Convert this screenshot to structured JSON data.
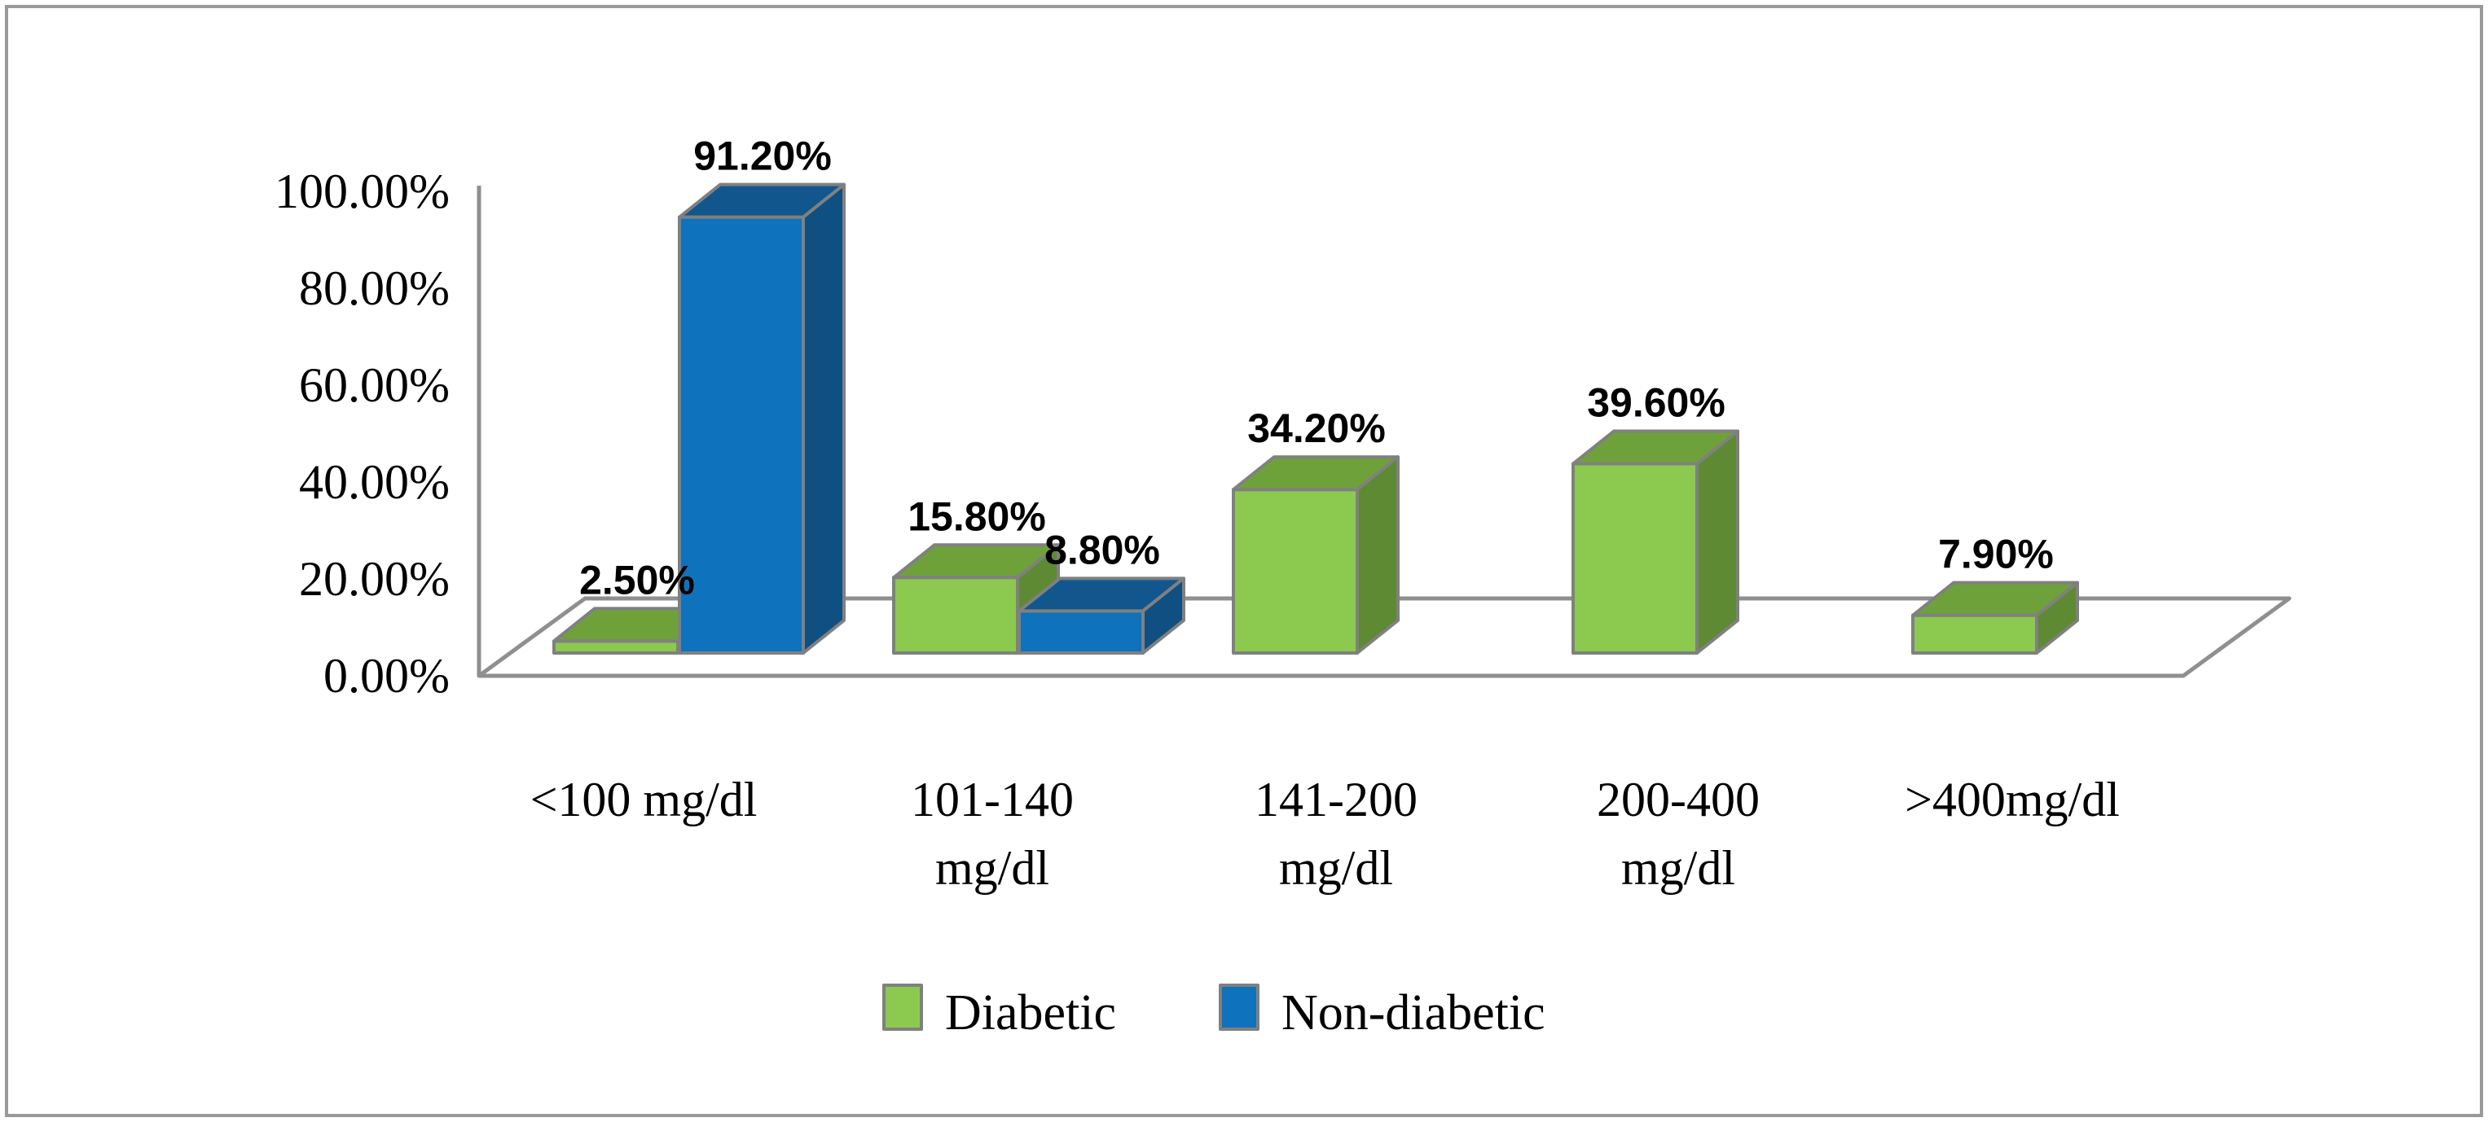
{
  "chart_data": {
    "type": "bar",
    "style": "3d-clustered-column",
    "title": "",
    "xlabel": "",
    "ylabel": "",
    "ylim": [
      0,
      100
    ],
    "ytick_step": 20,
    "ytick_labels": [
      "0.00%",
      "20.00%",
      "40.00%",
      "60.00%",
      "80.00%",
      "100.00%"
    ],
    "grid": false,
    "legend_position": "bottom-center",
    "categories": [
      "<100 mg/dl",
      "101-140 mg/dl",
      "141-200 mg/dl",
      "200-400 mg/dl",
      ">400mg/dl"
    ],
    "category_label_lines": [
      [
        "<100 mg/dl"
      ],
      [
        "101-140",
        "mg/dl"
      ],
      [
        "141-200",
        "mg/dl"
      ],
      [
        "200-400",
        "mg/dl"
      ],
      [
        ">400mg/dl"
      ]
    ],
    "series": [
      {
        "name": "Diabetic",
        "values": [
          2.5,
          15.8,
          34.2,
          39.6,
          7.9
        ],
        "labels": [
          "2.50%",
          "15.80%",
          "34.20%",
          "39.60%",
          "7.90%"
        ],
        "colors": {
          "front": "#8CC94F",
          "top": "#6FA13A",
          "side": "#5E8A33"
        }
      },
      {
        "name": "Non-diabetic",
        "values": [
          91.2,
          8.8,
          null,
          null,
          null
        ],
        "labels": [
          "91.20%",
          "8.80%",
          null,
          null,
          null
        ],
        "colors": {
          "front": "#0E72BC",
          "top": "#11578E",
          "side": "#0F4F82"
        }
      }
    ]
  },
  "legend": {
    "items": [
      {
        "label": "Diabetic",
        "color": "#8CC94F"
      },
      {
        "label": "Non-diabetic",
        "color": "#0E72BC"
      }
    ]
  },
  "frame_color": "#9a9a9a",
  "outline_color": "#808080"
}
